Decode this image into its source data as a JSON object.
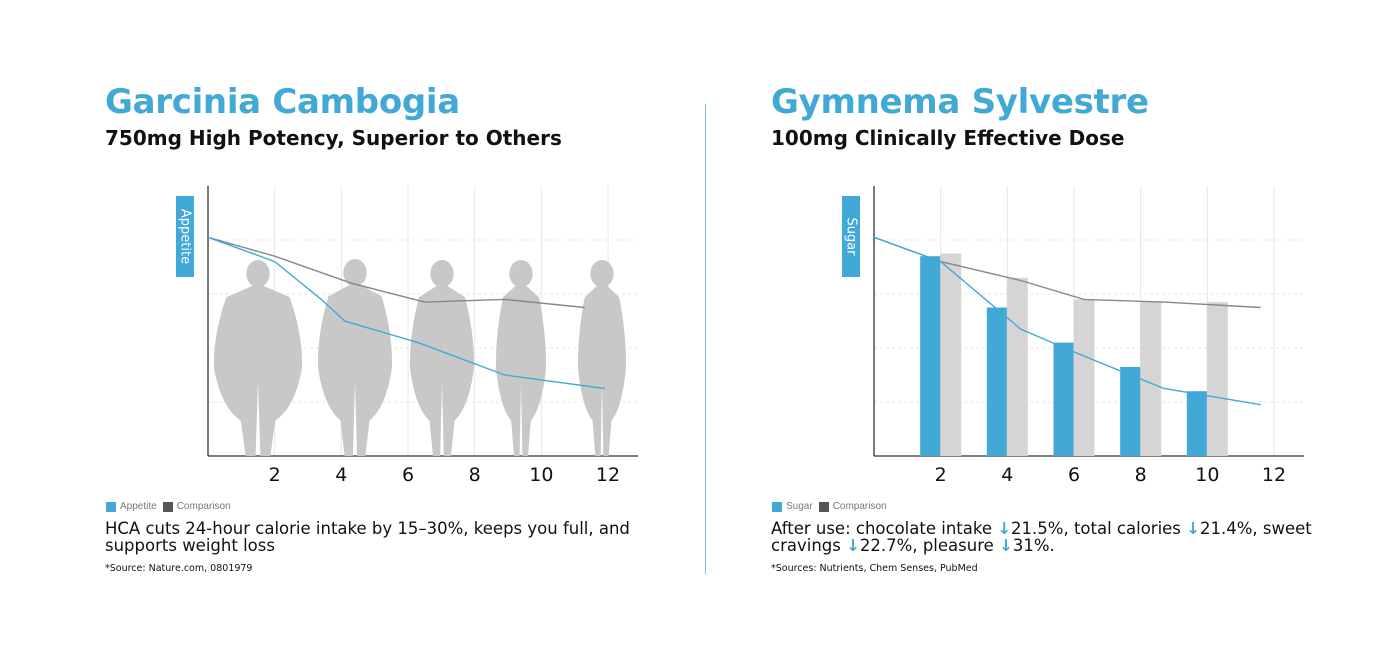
{
  "colors": {
    "accent": "#42a9d6",
    "comparison": "#555555",
    "bar_gray": "#d6d4d4",
    "silhouette": "#c8c8c8"
  },
  "left": {
    "title": "Garcinia Cambogia",
    "subtitle": "750mg High Potency, Superior to Others",
    "legend": [
      {
        "label": "Appetite",
        "color": "#42a9d6"
      },
      {
        "label": "Comparison",
        "color": "#555555"
      }
    ],
    "caption": "HCA cuts 24-hour calorie intake by 15–30%, keeps you full, and supports weight loss",
    "source": "*Source: Nature.com, 0801979",
    "silhouettes": [
      "body-silhouette-icon",
      "body-silhouette-icon",
      "body-silhouette-icon",
      "body-silhouette-icon",
      "body-silhouette-icon"
    ]
  },
  "right": {
    "title": "Gymnema Sylvestre",
    "subtitle": "100mg Clinically Effective Dose",
    "legend": [
      {
        "label": "Sugar",
        "color": "#42a9d6"
      },
      {
        "label": "Comparison",
        "color": "#555555"
      }
    ],
    "caption_parts": [
      {
        "text": "After use: chocolate intake ",
        "arrow": false
      },
      {
        "text": "↓",
        "arrow": true
      },
      {
        "text": "21.5%, total calories ",
        "arrow": false
      },
      {
        "text": "↓",
        "arrow": true
      },
      {
        "text": "21.4%, sweet cravings ",
        "arrow": false
      },
      {
        "text": "↓",
        "arrow": true
      },
      {
        "text": "22.7%, pleasure ",
        "arrow": false
      },
      {
        "text": "↓",
        "arrow": true
      },
      {
        "text": "31%.",
        "arrow": false
      }
    ],
    "source": "*Sources: Nutrients, Chem Senses, PubMed"
  },
  "chart_data": [
    {
      "type": "line",
      "ylabel": "Appetite",
      "xticks": [
        2,
        4,
        6,
        8,
        10,
        12
      ],
      "xlim": [
        0,
        12.9
      ],
      "ylim": [
        0,
        100
      ],
      "grid": true,
      "legend_position": "bottom-left",
      "series": [
        {
          "name": "Appetite",
          "color": "#42a9d6",
          "x": [
            0,
            2,
            3.4,
            4.1,
            6.3,
            8.9,
            11.9
          ],
          "y": [
            81,
            72,
            58,
            50,
            42,
            30,
            25
          ]
        },
        {
          "name": "Comparison",
          "color": "#888888",
          "x": [
            0,
            2,
            4.3,
            6.5,
            8.9,
            11.3
          ],
          "y": [
            81,
            74,
            64,
            57,
            58,
            55
          ]
        }
      ]
    },
    {
      "type": "bar",
      "ylabel": "Sugar",
      "xticks": [
        2,
        4,
        6,
        8,
        10,
        12
      ],
      "xlim": [
        0,
        12.9
      ],
      "ylim": [
        0,
        100
      ],
      "grid": true,
      "legend_position": "bottom-left",
      "series": [
        {
          "name": "Sugar",
          "kind": "bar",
          "color": "#42a9d6",
          "x": [
            1.7,
            3.7,
            5.7,
            7.7,
            9.7
          ],
          "values": [
            74,
            55,
            42,
            33,
            24
          ]
        },
        {
          "name": "Comparison",
          "kind": "bar",
          "color": "#d6d4d4",
          "x": [
            2.3,
            4.3,
            6.3,
            8.3,
            10.3
          ],
          "values": [
            75,
            66,
            58,
            57,
            57
          ]
        },
        {
          "name": "Sugar line",
          "kind": "line",
          "color": "#42a9d6",
          "x": [
            0,
            2,
            4.4,
            6.3,
            8.7,
            11.6
          ],
          "y": [
            81,
            72,
            47,
            37,
            25,
            19
          ]
        },
        {
          "name": "Comparison line",
          "kind": "line",
          "color": "#888888",
          "x": [
            0,
            2,
            4.4,
            6.3,
            8.7,
            11.6
          ],
          "y": [
            81,
            72,
            65,
            58,
            57,
            55
          ]
        }
      ]
    }
  ]
}
